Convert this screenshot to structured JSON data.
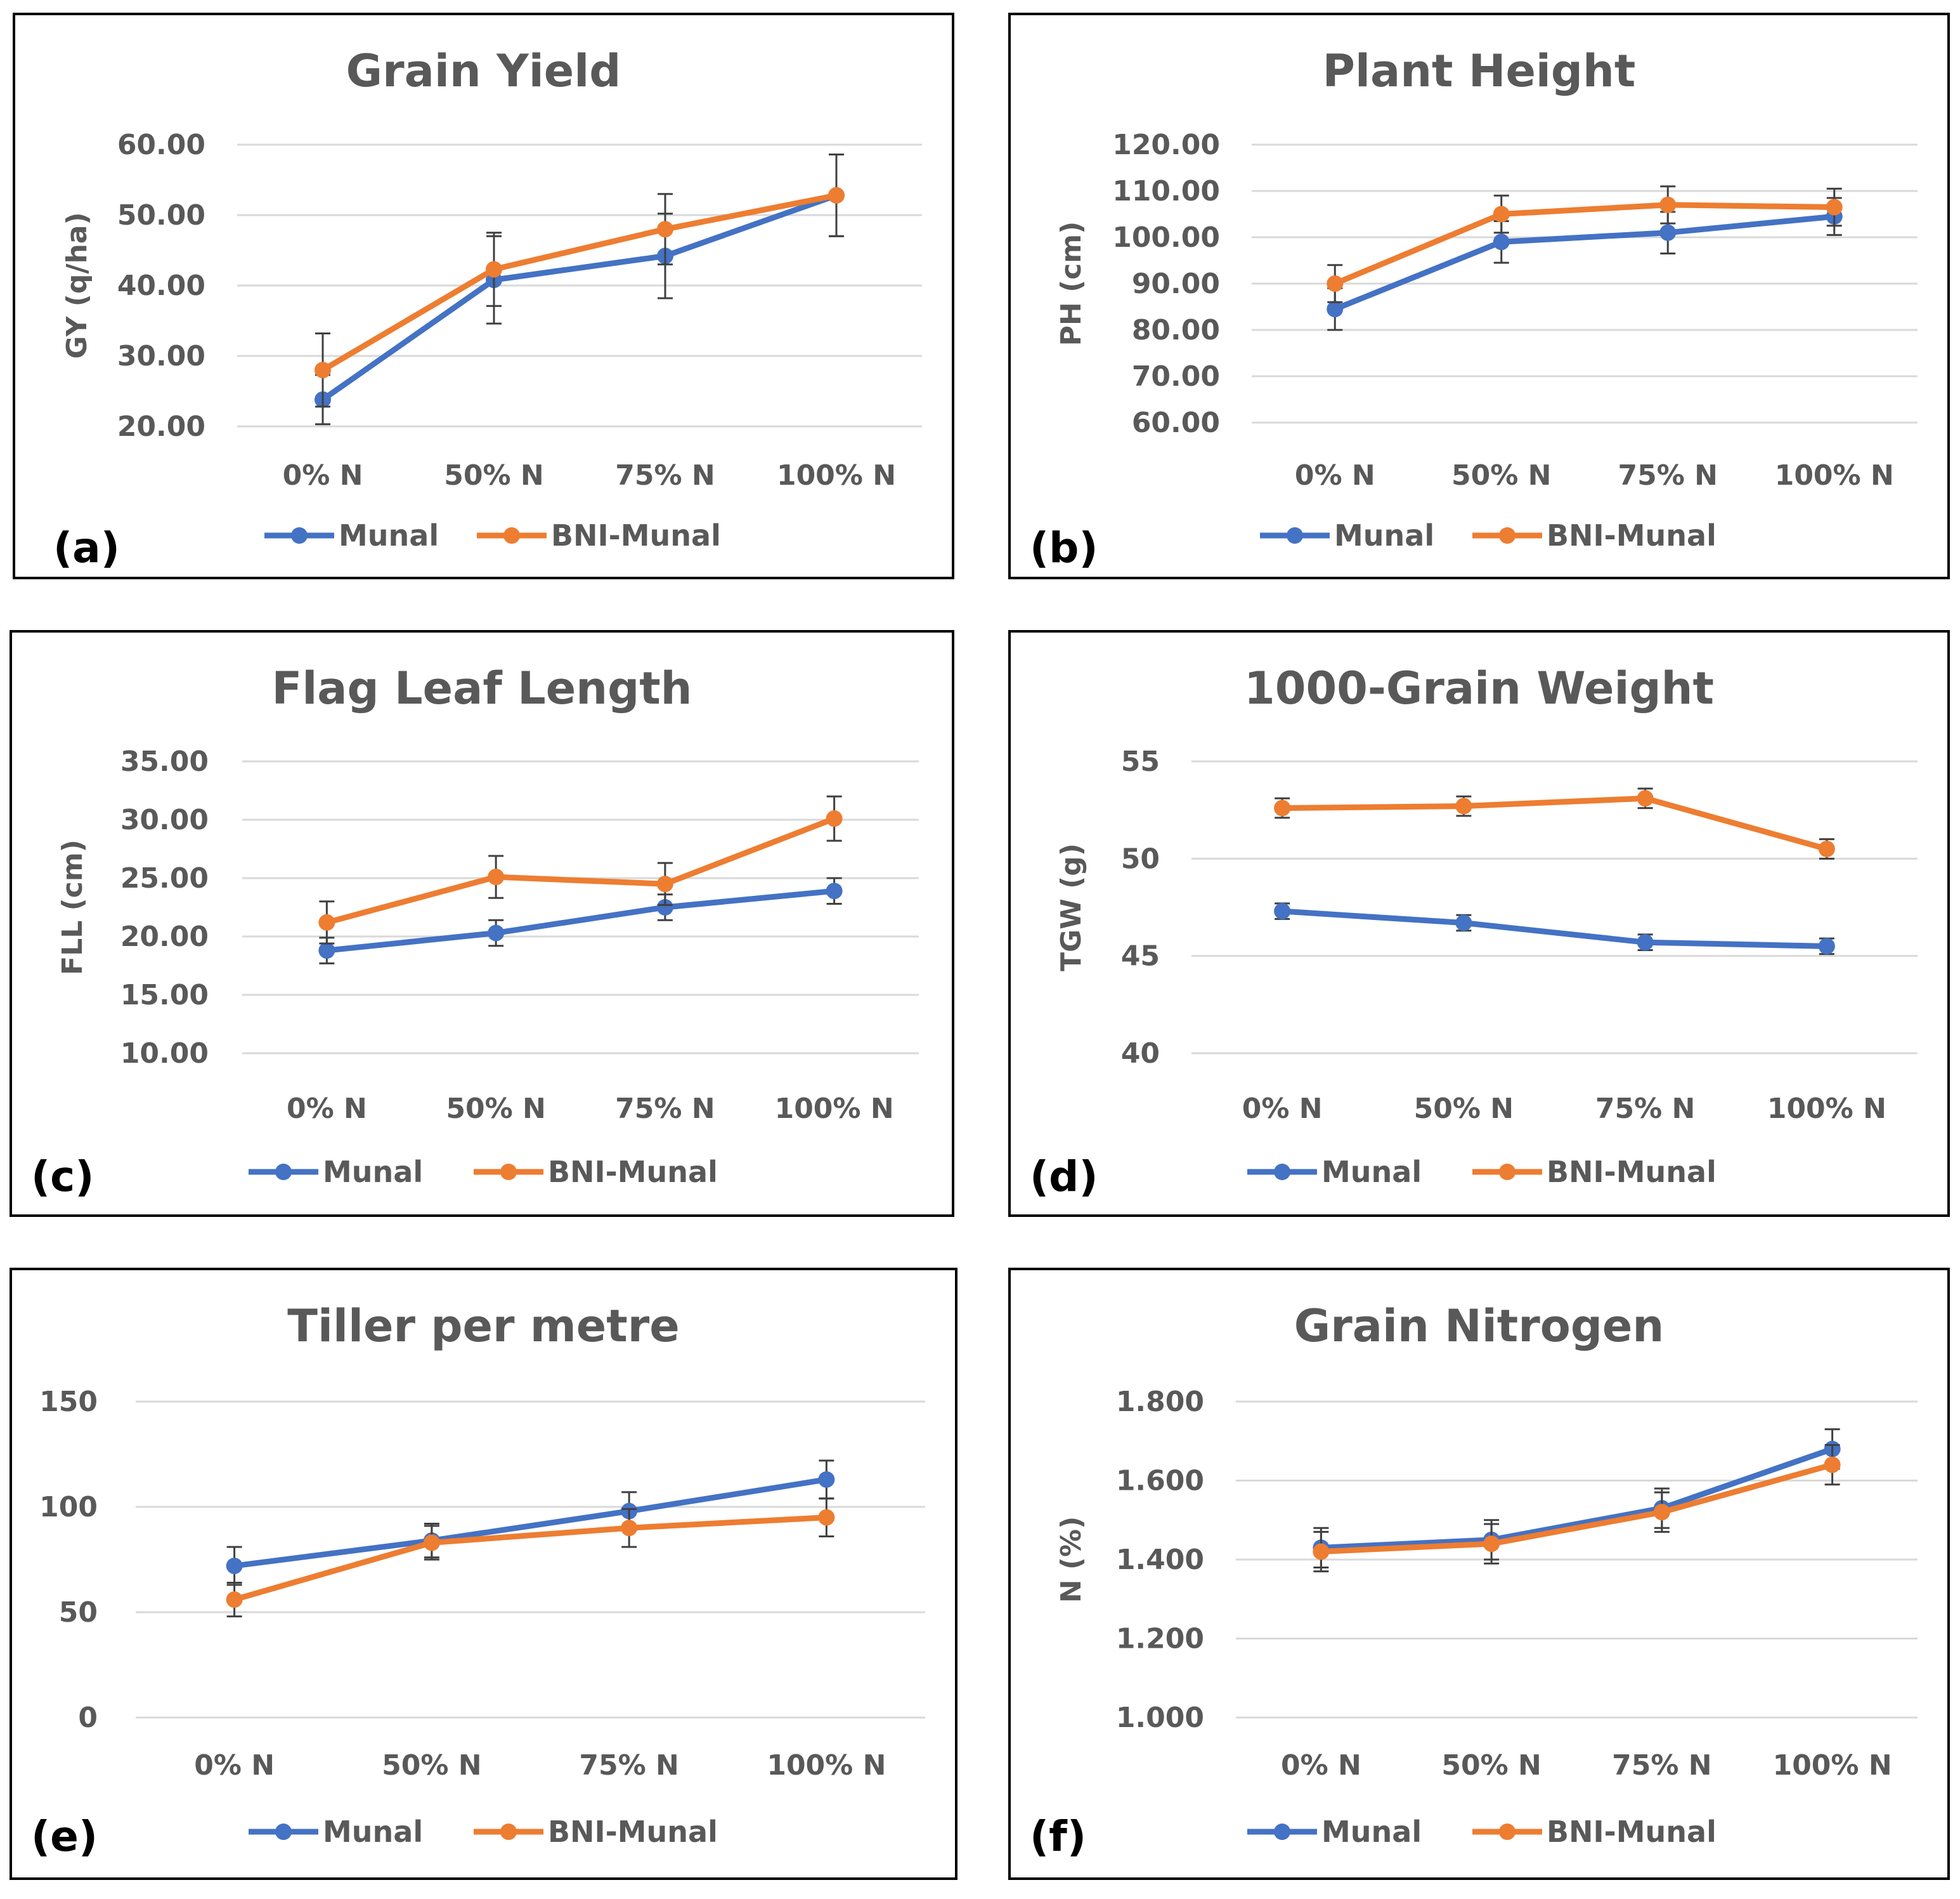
{
  "chart_data": [
    {
      "type": "line",
      "panel": "(a)",
      "title": "Grain Yield",
      "ylabel": "GY (q/ha)",
      "categories": [
        "0% N",
        "50% N",
        "75% N",
        "100% N"
      ],
      "yticks": [
        "20.00",
        "30.00",
        "40.00",
        "50.00",
        "60.00"
      ],
      "ylim": [
        20,
        60
      ],
      "series": [
        {
          "name": "Munal",
          "color": "#4472C4",
          "values": [
            23.8,
            40.8,
            44.2,
            52.8
          ],
          "errors": [
            3.5,
            6.2,
            6.0,
            5.8
          ]
        },
        {
          "name": "BNI-Munal",
          "color": "#ED7D31",
          "values": [
            28.0,
            42.3,
            48.0,
            52.8
          ],
          "errors": [
            5.2,
            5.2,
            5.0,
            5.8
          ]
        }
      ]
    },
    {
      "type": "line",
      "panel": "(b)",
      "title": "Plant Height",
      "ylabel": "PH (cm)",
      "categories": [
        "0% N",
        "50% N",
        "75% N",
        "100% N"
      ],
      "yticks": [
        "60.00",
        "70.00",
        "80.00",
        "90.00",
        "100.00",
        "110.00",
        "120.00"
      ],
      "ylim": [
        60,
        120
      ],
      "series": [
        {
          "name": "Munal",
          "color": "#4472C4",
          "values": [
            84.5,
            99.0,
            101.0,
            104.5
          ],
          "errors": [
            4.5,
            4.5,
            4.5,
            4.0
          ]
        },
        {
          "name": "BNI-Munal",
          "color": "#ED7D31",
          "values": [
            90.0,
            105.0,
            107.0,
            106.5
          ],
          "errors": [
            4.0,
            4.0,
            4.0,
            4.0
          ]
        }
      ]
    },
    {
      "type": "line",
      "panel": "(c)",
      "title": "Flag Leaf Length",
      "ylabel": "FLL (cm)",
      "categories": [
        "0% N",
        "50% N",
        "75% N",
        "100% N"
      ],
      "yticks": [
        "10.00",
        "15.00",
        "20.00",
        "25.00",
        "30.00",
        "35.00"
      ],
      "ylim": [
        10,
        35
      ],
      "series": [
        {
          "name": "Munal",
          "color": "#4472C4",
          "values": [
            18.8,
            20.3,
            22.5,
            23.9
          ],
          "errors": [
            1.1,
            1.1,
            1.1,
            1.1
          ]
        },
        {
          "name": "BNI-Munal",
          "color": "#ED7D31",
          "values": [
            21.2,
            25.1,
            24.5,
            30.1
          ],
          "errors": [
            1.8,
            1.8,
            1.8,
            1.9
          ]
        }
      ]
    },
    {
      "type": "line",
      "panel": "(d)",
      "title": "1000-Grain Weight",
      "ylabel": "TGW (g)",
      "categories": [
        "0% N",
        "50% N",
        "75% N",
        "100% N"
      ],
      "yticks": [
        "40",
        "45",
        "50",
        "55"
      ],
      "ylim": [
        40,
        55
      ],
      "series": [
        {
          "name": "Munal",
          "color": "#4472C4",
          "values": [
            47.3,
            46.7,
            45.7,
            45.5
          ],
          "errors": [
            0.4,
            0.4,
            0.4,
            0.4
          ]
        },
        {
          "name": "BNI-Munal",
          "color": "#ED7D31",
          "values": [
            52.6,
            52.7,
            53.1,
            50.5
          ],
          "errors": [
            0.5,
            0.5,
            0.5,
            0.5
          ]
        }
      ]
    },
    {
      "type": "line",
      "panel": "(e)",
      "title": "Tiller per metre",
      "ylabel": "",
      "categories": [
        "0% N",
        "50% N",
        "75% N",
        "100% N"
      ],
      "yticks": [
        "0",
        "50",
        "100",
        "150"
      ],
      "ylim": [
        0,
        150
      ],
      "series": [
        {
          "name": "Munal",
          "color": "#4472C4",
          "values": [
            72,
            84,
            98,
            113
          ],
          "errors": [
            9,
            8,
            9,
            9
          ]
        },
        {
          "name": "BNI-Munal",
          "color": "#ED7D31",
          "values": [
            56,
            83,
            90,
            95
          ],
          "errors": [
            8,
            8,
            9,
            9
          ]
        }
      ]
    },
    {
      "type": "line",
      "panel": "(f)",
      "title": "Grain Nitrogen",
      "ylabel": "N (%)",
      "categories": [
        "0% N",
        "50% N",
        "75% N",
        "100% N"
      ],
      "yticks": [
        "1.000",
        "1.200",
        "1.400",
        "1.600",
        "1.800"
      ],
      "ylim": [
        1.0,
        1.8
      ],
      "series": [
        {
          "name": "Munal",
          "color": "#4472C4",
          "values": [
            1.43,
            1.45,
            1.53,
            1.68
          ],
          "errors": [
            0.05,
            0.05,
            0.05,
            0.05
          ]
        },
        {
          "name": "BNI-Munal",
          "color": "#ED7D31",
          "values": [
            1.42,
            1.44,
            1.52,
            1.64
          ],
          "errors": [
            0.05,
            0.05,
            0.05,
            0.05
          ]
        }
      ]
    }
  ]
}
